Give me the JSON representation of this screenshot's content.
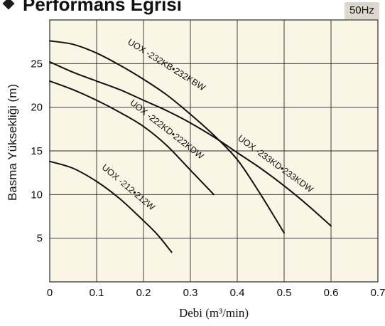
{
  "header": {
    "title": "Performans Eğrisi",
    "badge": "50Hz"
  },
  "colors": {
    "plot_background": "#fbf5e6",
    "grid": "#2a2a2a",
    "curve": "#111111",
    "badge_background": "#ddd8cd"
  },
  "chart_data": {
    "type": "line",
    "xlabel": "Debi (m³/min)",
    "ylabel": "Basma Yüksekliği (m)",
    "xlim": [
      0,
      0.7
    ],
    "ylim": [
      0,
      30
    ],
    "x_ticks": [
      "0",
      "0.1",
      "0.2",
      "0.3",
      "0.4",
      "0.5",
      "0.6",
      "0.7"
    ],
    "y_ticks": [
      "5",
      "10",
      "15",
      "20",
      "25"
    ],
    "grid": true,
    "series": [
      {
        "name": "UOX -212•212W",
        "points": [
          [
            0,
            13.8
          ],
          [
            0.05,
            13.0
          ],
          [
            0.1,
            11.5
          ],
          [
            0.15,
            9.5
          ],
          [
            0.2,
            7.0
          ],
          [
            0.23,
            5.4
          ],
          [
            0.26,
            3.4
          ]
        ]
      },
      {
        "name": "UOX -222KD•222KDW",
        "points": [
          [
            0,
            23.0
          ],
          [
            0.05,
            22.0
          ],
          [
            0.1,
            20.8
          ],
          [
            0.15,
            19.4
          ],
          [
            0.2,
            17.8
          ],
          [
            0.25,
            15.6
          ],
          [
            0.3,
            12.8
          ],
          [
            0.35,
            10.0
          ]
        ]
      },
      {
        "name": "UOX -232KB•232KBW",
        "points": [
          [
            0,
            27.6
          ],
          [
            0.05,
            27.2
          ],
          [
            0.1,
            26.2
          ],
          [
            0.15,
            24.8
          ],
          [
            0.2,
            23.2
          ],
          [
            0.25,
            21.4
          ],
          [
            0.3,
            19.2
          ],
          [
            0.35,
            16.8
          ],
          [
            0.4,
            14.0
          ],
          [
            0.45,
            10.0
          ],
          [
            0.5,
            5.6
          ]
        ]
      },
      {
        "name": "UOX -233KD•233KDW",
        "points": [
          [
            0,
            25.2
          ],
          [
            0.05,
            24.0
          ],
          [
            0.1,
            23.0
          ],
          [
            0.15,
            22.0
          ],
          [
            0.2,
            20.8
          ],
          [
            0.25,
            19.6
          ],
          [
            0.3,
            18.2
          ],
          [
            0.35,
            16.6
          ],
          [
            0.4,
            14.8
          ],
          [
            0.45,
            13.0
          ],
          [
            0.5,
            11.0
          ],
          [
            0.55,
            8.8
          ],
          [
            0.6,
            6.4
          ]
        ]
      }
    ]
  }
}
